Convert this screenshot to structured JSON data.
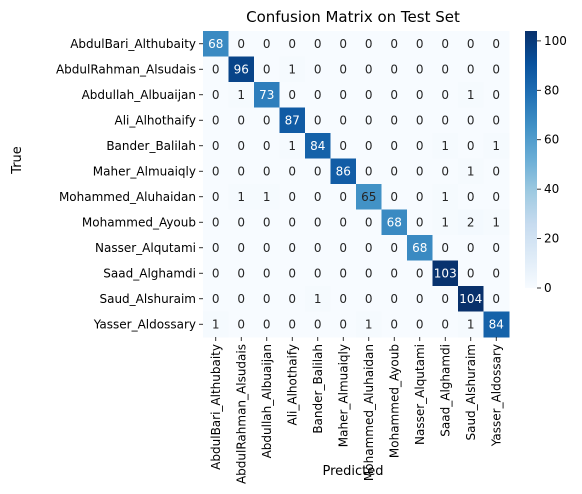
{
  "chart_data": {
    "type": "heatmap",
    "title": "Confusion Matrix on Test Set",
    "xlabel": "Predicted",
    "ylabel": "True",
    "row_labels": [
      "AbdulBari_Althubaity",
      "AbdulRahman_Alsudais",
      "Abdullah_Albuaijan",
      "Ali_Alhothaify",
      "Bander_Balilah",
      "Maher_Almuaiqly",
      "Mohammed_Aluhaidan",
      "Mohammed_Ayoub",
      "Nasser_Alqutami",
      "Saad_Alghamdi",
      "Saud_Alshuraim",
      "Yasser_Aldossary"
    ],
    "col_labels": [
      "AbdulBari_Althubaity",
      "AbdulRahman_Alsudais",
      "Abdullah_Albuaijan",
      "Ali_Alhothaify",
      "Bander_Balilah",
      "Maher_Almuaiqly",
      "Mohammed_Aluhaidan",
      "Mohammed_Ayoub",
      "Nasser_Alqutami",
      "Saad_Alghamdi",
      "Saud_Alshuraim",
      "Yasser_Aldossary"
    ],
    "matrix": [
      [
        68,
        0,
        0,
        0,
        0,
        0,
        0,
        0,
        0,
        0,
        0,
        0
      ],
      [
        0,
        96,
        0,
        1,
        0,
        0,
        0,
        0,
        0,
        0,
        0,
        0
      ],
      [
        0,
        1,
        73,
        0,
        0,
        0,
        0,
        0,
        0,
        0,
        1,
        0
      ],
      [
        0,
        0,
        0,
        87,
        0,
        0,
        0,
        0,
        0,
        0,
        0,
        0
      ],
      [
        0,
        0,
        0,
        1,
        84,
        0,
        0,
        0,
        0,
        1,
        0,
        1
      ],
      [
        0,
        0,
        0,
        0,
        0,
        86,
        0,
        0,
        0,
        0,
        1,
        0
      ],
      [
        0,
        1,
        1,
        0,
        0,
        0,
        65,
        0,
        0,
        1,
        0,
        0
      ],
      [
        0,
        0,
        0,
        0,
        0,
        0,
        0,
        68,
        0,
        1,
        2,
        1
      ],
      [
        0,
        0,
        0,
        0,
        0,
        0,
        0,
        0,
        68,
        0,
        0,
        0
      ],
      [
        0,
        0,
        0,
        0,
        0,
        0,
        0,
        0,
        0,
        103,
        0,
        0
      ],
      [
        0,
        0,
        0,
        0,
        1,
        0,
        0,
        0,
        0,
        0,
        104,
        0
      ],
      [
        1,
        0,
        0,
        0,
        0,
        0,
        1,
        0,
        0,
        0,
        1,
        84
      ]
    ],
    "colormap": "Blues",
    "vmin": 0,
    "vmax": 104,
    "colorbar_ticks": [
      0,
      20,
      40,
      60,
      80,
      100
    ],
    "annotated": true,
    "grid": false
  }
}
